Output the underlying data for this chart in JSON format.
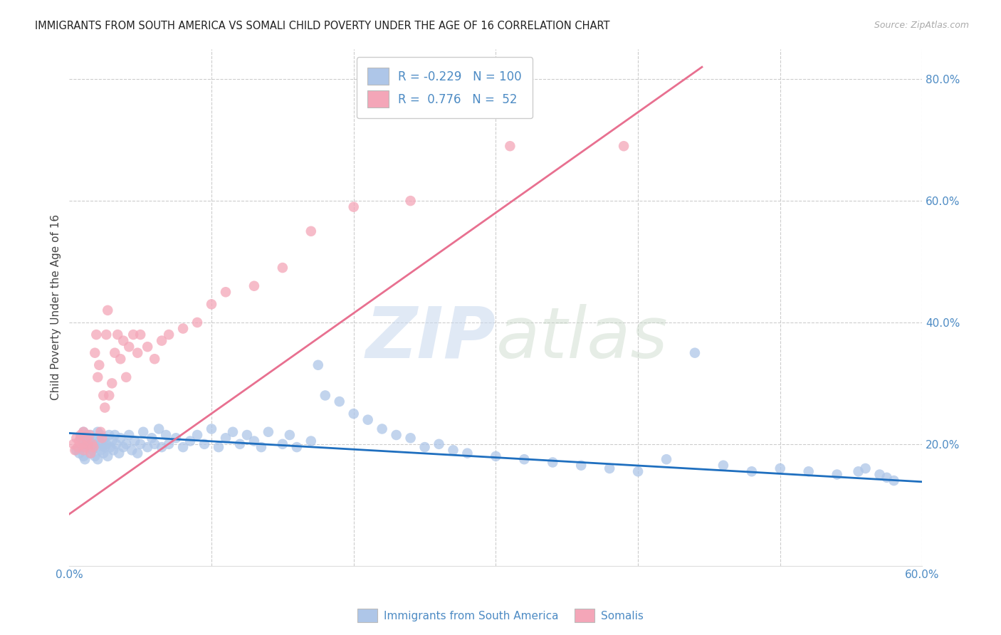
{
  "title": "IMMIGRANTS FROM SOUTH AMERICA VS SOMALI CHILD POVERTY UNDER THE AGE OF 16 CORRELATION CHART",
  "source": "Source: ZipAtlas.com",
  "ylabel": "Child Poverty Under the Age of 16",
  "xlim": [
    0.0,
    0.6
  ],
  "ylim": [
    0.0,
    0.85
  ],
  "xticks": [
    0.0,
    0.1,
    0.2,
    0.3,
    0.4,
    0.5,
    0.6
  ],
  "xticklabels": [
    "0.0%",
    "",
    "",
    "",
    "",
    "",
    "60.0%"
  ],
  "yticks_right": [
    0.0,
    0.2,
    0.4,
    0.6,
    0.8
  ],
  "yticklabels_right": [
    "",
    "20.0%",
    "40.0%",
    "60.0%",
    "80.0%"
  ],
  "blue_R": "-0.229",
  "blue_N": "100",
  "pink_R": "0.776",
  "pink_N": "52",
  "blue_color": "#aec6e8",
  "pink_color": "#f4a6b8",
  "blue_line_color": "#1f6fbf",
  "pink_line_color": "#e87090",
  "watermark_zip": "ZIP",
  "watermark_atlas": "atlas",
  "legend_label_blue": "Immigrants from South America",
  "legend_label_pink": "Somalis",
  "blue_scatter_x": [
    0.005,
    0.007,
    0.008,
    0.009,
    0.01,
    0.01,
    0.011,
    0.012,
    0.012,
    0.013,
    0.014,
    0.015,
    0.015,
    0.016,
    0.017,
    0.018,
    0.018,
    0.019,
    0.02,
    0.02,
    0.021,
    0.022,
    0.022,
    0.023,
    0.024,
    0.025,
    0.025,
    0.026,
    0.027,
    0.028,
    0.029,
    0.03,
    0.031,
    0.032,
    0.033,
    0.035,
    0.036,
    0.038,
    0.04,
    0.042,
    0.044,
    0.046,
    0.048,
    0.05,
    0.052,
    0.055,
    0.058,
    0.06,
    0.063,
    0.065,
    0.068,
    0.07,
    0.075,
    0.08,
    0.085,
    0.09,
    0.095,
    0.1,
    0.105,
    0.11,
    0.115,
    0.12,
    0.125,
    0.13,
    0.135,
    0.14,
    0.15,
    0.155,
    0.16,
    0.17,
    0.175,
    0.18,
    0.19,
    0.2,
    0.21,
    0.22,
    0.23,
    0.24,
    0.25,
    0.26,
    0.27,
    0.28,
    0.3,
    0.32,
    0.34,
    0.36,
    0.38,
    0.4,
    0.42,
    0.44,
    0.46,
    0.48,
    0.5,
    0.52,
    0.54,
    0.555,
    0.56,
    0.57,
    0.575,
    0.58
  ],
  "blue_scatter_y": [
    0.19,
    0.185,
    0.21,
    0.195,
    0.18,
    0.22,
    0.175,
    0.2,
    0.215,
    0.195,
    0.205,
    0.185,
    0.215,
    0.19,
    0.2,
    0.18,
    0.21,
    0.195,
    0.175,
    0.22,
    0.205,
    0.19,
    0.215,
    0.2,
    0.185,
    0.195,
    0.21,
    0.2,
    0.18,
    0.215,
    0.195,
    0.205,
    0.19,
    0.215,
    0.2,
    0.185,
    0.21,
    0.195,
    0.2,
    0.215,
    0.19,
    0.205,
    0.185,
    0.2,
    0.22,
    0.195,
    0.21,
    0.2,
    0.225,
    0.195,
    0.215,
    0.2,
    0.21,
    0.195,
    0.205,
    0.215,
    0.2,
    0.225,
    0.195,
    0.21,
    0.22,
    0.2,
    0.215,
    0.205,
    0.195,
    0.22,
    0.2,
    0.215,
    0.195,
    0.205,
    0.33,
    0.28,
    0.27,
    0.25,
    0.24,
    0.225,
    0.215,
    0.21,
    0.195,
    0.2,
    0.19,
    0.185,
    0.18,
    0.175,
    0.17,
    0.165,
    0.16,
    0.155,
    0.175,
    0.35,
    0.165,
    0.155,
    0.16,
    0.155,
    0.15,
    0.155,
    0.16,
    0.15,
    0.145,
    0.14
  ],
  "pink_scatter_x": [
    0.003,
    0.004,
    0.005,
    0.006,
    0.007,
    0.008,
    0.009,
    0.01,
    0.01,
    0.011,
    0.012,
    0.013,
    0.014,
    0.015,
    0.016,
    0.017,
    0.018,
    0.019,
    0.02,
    0.021,
    0.022,
    0.023,
    0.024,
    0.025,
    0.026,
    0.027,
    0.028,
    0.03,
    0.032,
    0.034,
    0.036,
    0.038,
    0.04,
    0.042,
    0.045,
    0.048,
    0.05,
    0.055,
    0.06,
    0.065,
    0.07,
    0.08,
    0.09,
    0.1,
    0.11,
    0.13,
    0.15,
    0.17,
    0.2,
    0.24,
    0.31,
    0.39
  ],
  "pink_scatter_y": [
    0.2,
    0.19,
    0.21,
    0.195,
    0.205,
    0.215,
    0.2,
    0.19,
    0.22,
    0.195,
    0.21,
    0.2,
    0.215,
    0.185,
    0.2,
    0.195,
    0.35,
    0.38,
    0.31,
    0.33,
    0.22,
    0.21,
    0.28,
    0.26,
    0.38,
    0.42,
    0.28,
    0.3,
    0.35,
    0.38,
    0.34,
    0.37,
    0.31,
    0.36,
    0.38,
    0.35,
    0.38,
    0.36,
    0.34,
    0.37,
    0.38,
    0.39,
    0.4,
    0.43,
    0.45,
    0.46,
    0.49,
    0.55,
    0.59,
    0.6,
    0.69,
    0.69
  ],
  "blue_trend_x": [
    0.0,
    0.6
  ],
  "blue_trend_y": [
    0.218,
    0.138
  ],
  "pink_trend_x": [
    0.0,
    0.445
  ],
  "pink_trend_y": [
    0.085,
    0.82
  ],
  "bg_color": "#ffffff",
  "grid_color": "#cccccc"
}
